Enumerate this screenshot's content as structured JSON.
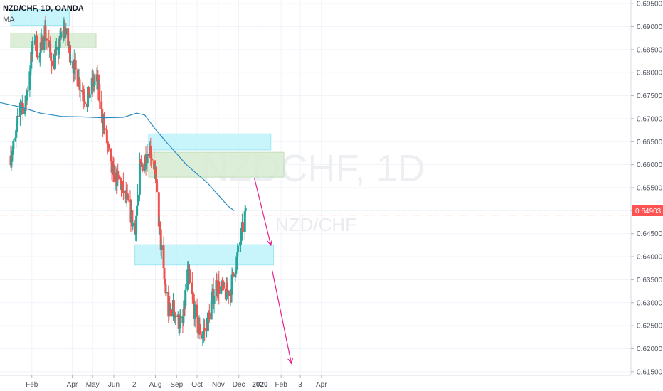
{
  "header": {
    "title": "NZD/CHF, 1D, OANDA",
    "indicator": "MA"
  },
  "watermark": {
    "symbol": "NZDCHF, 1D",
    "pair": "NZD/CHF"
  },
  "colors": {
    "up": "#26a69a",
    "down": "#ef5350",
    "ma": "#2a8bc0",
    "zone_cyan": "#bff3fb",
    "zone_green": "#d7ecd2",
    "arrow": "#e91e8c",
    "price_line": "#ff5252"
  },
  "chart_data": {
    "type": "candlestick",
    "title": "NZD/CHF, 1D, OANDA",
    "indicator": "MA",
    "ylim": [
      0.6142,
      0.6958
    ],
    "y_ticks": [
      "0.69500",
      "0.69000",
      "0.68500",
      "0.68000",
      "0.67500",
      "0.67000",
      "0.66500",
      "0.66000",
      "0.65500",
      "0.65000",
      "0.64500",
      "0.64000",
      "0.63500",
      "0.63000",
      "0.62500",
      "0.62000",
      "0.61500"
    ],
    "x_ticks": [
      "Feb",
      "Apr",
      "May",
      "Jun",
      "2",
      "Aug",
      "Sep",
      "Oct",
      "Nov",
      "Dec",
      "2020",
      "Feb",
      "3",
      "Apr"
    ],
    "last_price": "0.64903",
    "price_path": [
      {
        "x": "Jan 01",
        "y": 0.662
      },
      {
        "x": "Jan 08",
        "y": 0.665
      },
      {
        "x": "Jan 15",
        "y": 0.674
      },
      {
        "x": "Jan 22",
        "y": 0.672
      },
      {
        "x": "Jan 29",
        "y": 0.681
      },
      {
        "x": "Feb 05",
        "y": 0.688
      },
      {
        "x": "Feb 12",
        "y": 0.683
      },
      {
        "x": "Feb 19",
        "y": 0.69
      },
      {
        "x": "Feb 26",
        "y": 0.685
      },
      {
        "x": "Mar 05",
        "y": 0.682
      },
      {
        "x": "Mar 12",
        "y": 0.685
      },
      {
        "x": "Mar 19",
        "y": 0.69
      },
      {
        "x": "Mar 26",
        "y": 0.686
      },
      {
        "x": "Apr 02",
        "y": 0.682
      },
      {
        "x": "Apr 09",
        "y": 0.679
      },
      {
        "x": "Apr 16",
        "y": 0.676
      },
      {
        "x": "Apr 23",
        "y": 0.674
      },
      {
        "x": "Apr 30",
        "y": 0.677
      },
      {
        "x": "May 07",
        "y": 0.679
      },
      {
        "x": "May 14",
        "y": 0.671
      },
      {
        "x": "May 21",
        "y": 0.666
      },
      {
        "x": "May 28",
        "y": 0.659
      },
      {
        "x": "Jun 04",
        "y": 0.657
      },
      {
        "x": "Jun 11",
        "y": 0.656
      },
      {
        "x": "Jun 18",
        "y": 0.653
      },
      {
        "x": "Jun 25",
        "y": 0.65
      },
      {
        "x": "Jul 02",
        "y": 0.645
      },
      {
        "x": "Jul 09",
        "y": 0.659
      },
      {
        "x": "Jul 16",
        "y": 0.661
      },
      {
        "x": "Jul 23",
        "y": 0.664
      },
      {
        "x": "Jul 30",
        "y": 0.66
      },
      {
        "x": "Aug 06",
        "y": 0.648
      },
      {
        "x": "Aug 13",
        "y": 0.636
      },
      {
        "x": "Aug 20",
        "y": 0.628
      },
      {
        "x": "Aug 27",
        "y": 0.629
      },
      {
        "x": "Sep 03",
        "y": 0.626
      },
      {
        "x": "Sep 10",
        "y": 0.625
      },
      {
        "x": "Sep 17",
        "y": 0.637
      },
      {
        "x": "Sep 24",
        "y": 0.631
      },
      {
        "x": "Oct 01",
        "y": 0.625
      },
      {
        "x": "Oct 08",
        "y": 0.623
      },
      {
        "x": "Oct 15",
        "y": 0.625
      },
      {
        "x": "Oct 22",
        "y": 0.63
      },
      {
        "x": "Oct 29",
        "y": 0.634
      },
      {
        "x": "Nov 05",
        "y": 0.633
      },
      {
        "x": "Nov 12",
        "y": 0.632
      },
      {
        "x": "Nov 19",
        "y": 0.633
      },
      {
        "x": "Nov 26",
        "y": 0.638
      },
      {
        "x": "Dec 03",
        "y": 0.643
      },
      {
        "x": "Dec 10",
        "y": 0.649
      }
    ],
    "moving_average": [
      {
        "x": "Jan 01",
        "y": 0.6735
      },
      {
        "x": "Feb 01",
        "y": 0.6725
      },
      {
        "x": "Mar 01",
        "y": 0.6712
      },
      {
        "x": "Apr 01",
        "y": 0.6705
      },
      {
        "x": "May 01",
        "y": 0.6704
      },
      {
        "x": "Jun 01",
        "y": 0.6702
      },
      {
        "x": "Jul 01",
        "y": 0.6703
      },
      {
        "x": "Jul 20",
        "y": 0.6712
      },
      {
        "x": "Aug 01",
        "y": 0.6708
      },
      {
        "x": "Aug 15",
        "y": 0.668
      },
      {
        "x": "Sep 01",
        "y": 0.665
      },
      {
        "x": "Oct 01",
        "y": 0.66
      },
      {
        "x": "Nov 01",
        "y": 0.656
      },
      {
        "x": "Dec 01",
        "y": 0.651
      },
      {
        "x": "Dec 10",
        "y": 0.65
      }
    ],
    "zones": [
      {
        "color": "cyan",
        "from": "Jan 01",
        "to": "Mar 28",
        "low": 0.6903,
        "high": 0.6937
      },
      {
        "color": "green",
        "from": "Jan 01",
        "to": "May 06",
        "low": 0.6854,
        "high": 0.6886
      },
      {
        "color": "cyan",
        "from": "Jul 22",
        "to": "Jan 17",
        "low": 0.6632,
        "high": 0.6667
      },
      {
        "color": "green",
        "from": "Jul 22",
        "to": "Feb 05",
        "low": 0.6573,
        "high": 0.6627
      },
      {
        "color": "cyan",
        "from": "Jul 02",
        "to": "Jan 21",
        "low": 0.6382,
        "high": 0.6426
      }
    ],
    "projection_arrows": [
      {
        "from": {
          "x": "Dec 24",
          "y": 0.657
        },
        "to": {
          "x": "Jan 17",
          "y": 0.6425
        }
      },
      {
        "from": {
          "x": "Jan 19",
          "y": 0.637
        },
        "to": {
          "x": "Feb 16",
          "y": 0.6168
        }
      }
    ]
  }
}
